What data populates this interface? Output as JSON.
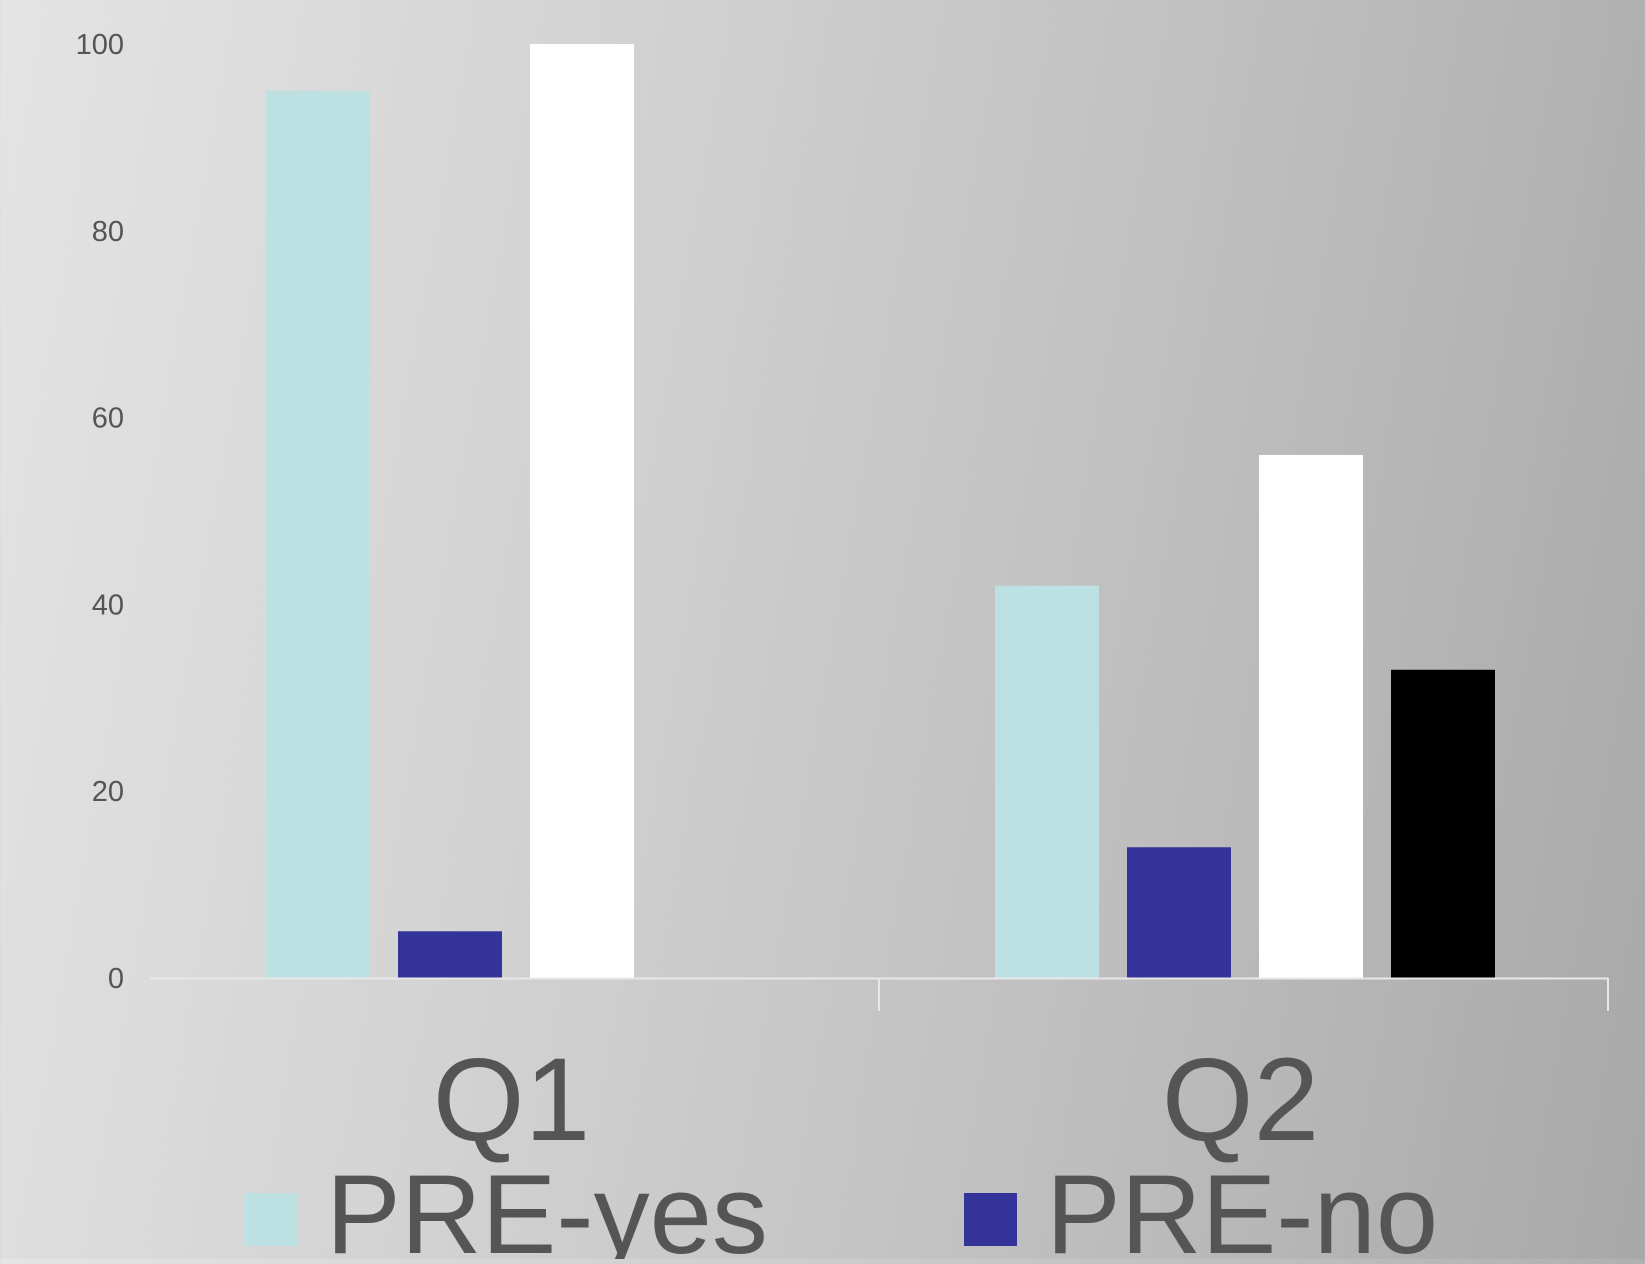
{
  "chart_data": {
    "type": "bar",
    "categories": [
      "Q1",
      "Q2"
    ],
    "series": [
      {
        "name": "PRE-yes",
        "values": [
          95,
          42
        ],
        "color": "#bde0e3"
      },
      {
        "name": "PRE-no",
        "values": [
          5,
          14
        ],
        "color": "#333399"
      },
      {
        "values": [
          100,
          56
        ],
        "color": "#ffffff"
      },
      {
        "values": [
          0,
          33
        ],
        "color": "#000000"
      }
    ],
    "y_ticks": [
      "0",
      "20",
      "40",
      "60",
      "80",
      "100"
    ],
    "ylim": [
      0,
      100
    ],
    "grid": false,
    "legend": {
      "position": "bottom",
      "visible_entries": [
        "PRE-yes",
        "PRE-no"
      ]
    },
    "colors": {
      "axis": "#e8e8e8",
      "text": "#555555"
    }
  }
}
